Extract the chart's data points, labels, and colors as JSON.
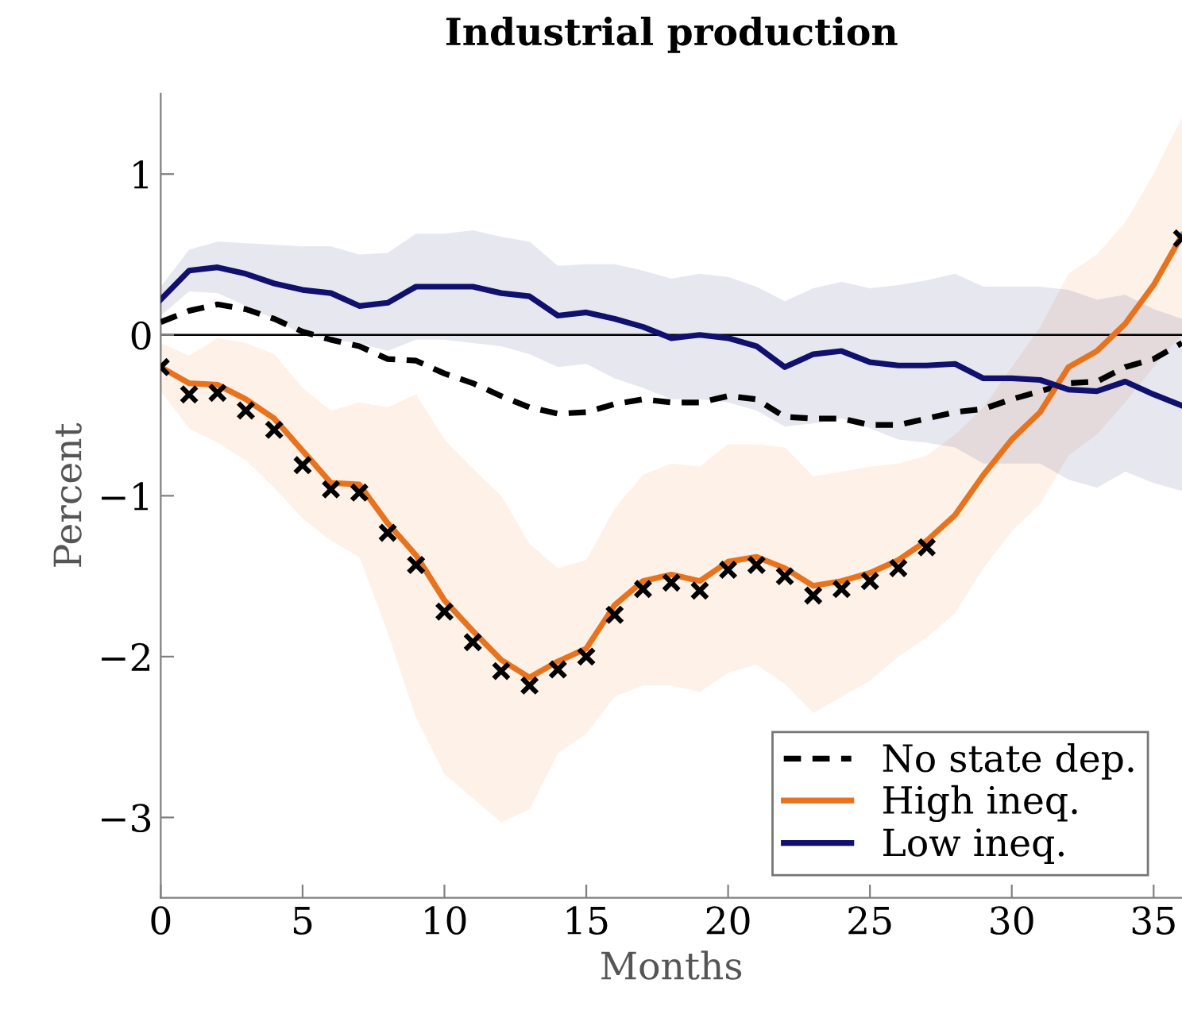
{
  "chart_data": {
    "type": "line",
    "title": "Industrial production",
    "xlabel": "Months",
    "ylabel": "Percent",
    "xlim": [
      0,
      36
    ],
    "ylim": [
      -3.5,
      1.5
    ],
    "xticks": [
      0,
      5,
      10,
      15,
      20,
      25,
      30,
      35
    ],
    "yticks": [
      {
        "value": -3,
        "label": "−3"
      },
      {
        "value": -2,
        "label": "−2"
      },
      {
        "value": -1,
        "label": "−1"
      },
      0,
      1
    ],
    "grid": false,
    "legend": "bottom right",
    "ref_lines": [
      {
        "axis": "y",
        "value": 0,
        "color": "#000000"
      }
    ],
    "x": [
      0,
      1,
      2,
      3,
      4,
      5,
      6,
      7,
      8,
      9,
      10,
      11,
      12,
      13,
      14,
      15,
      16,
      17,
      18,
      19,
      20,
      21,
      22,
      23,
      24,
      25,
      26,
      27,
      28,
      29,
      30,
      31,
      32,
      33,
      34,
      35,
      36
    ],
    "series": [
      {
        "name": "No state dep.",
        "color": "#000000",
        "line_style": "dashed",
        "values": [
          0.08,
          0.15,
          0.19,
          0.16,
          0.1,
          0.02,
          -0.03,
          -0.07,
          -0.15,
          -0.16,
          -0.24,
          -0.3,
          -0.38,
          -0.45,
          -0.49,
          -0.48,
          -0.43,
          -0.4,
          -0.42,
          -0.42,
          -0.38,
          -0.4,
          -0.51,
          -0.52,
          -0.52,
          -0.56,
          -0.56,
          -0.52,
          -0.48,
          -0.46,
          -0.4,
          -0.35,
          -0.3,
          -0.29,
          -0.2,
          -0.15,
          -0.05
        ]
      },
      {
        "name": "High ineq.",
        "color": "#e8731e",
        "line_style": "solid",
        "values": [
          -0.2,
          -0.3,
          -0.31,
          -0.4,
          -0.52,
          -0.72,
          -0.92,
          -0.93,
          -1.17,
          -1.37,
          -1.65,
          -1.84,
          -2.02,
          -2.13,
          -2.03,
          -1.95,
          -1.68,
          -1.53,
          -1.49,
          -1.53,
          -1.41,
          -1.38,
          -1.45,
          -1.56,
          -1.53,
          -1.48,
          -1.4,
          -1.28,
          -1.12,
          -0.87,
          -0.65,
          -0.48,
          -0.2,
          -0.1,
          0.07,
          0.31,
          0.62
        ],
        "upper": [
          -0.05,
          -0.13,
          -0.02,
          -0.05,
          -0.12,
          -0.33,
          -0.47,
          -0.42,
          -0.45,
          -0.37,
          -0.65,
          -0.83,
          -1.0,
          -1.3,
          -1.45,
          -1.4,
          -1.08,
          -0.87,
          -0.8,
          -0.82,
          -0.68,
          -0.68,
          -0.7,
          -0.88,
          -0.85,
          -0.82,
          -0.8,
          -0.75,
          -0.62,
          -0.45,
          -0.2,
          0.05,
          0.38,
          0.5,
          0.7,
          1.0,
          1.35
        ],
        "lower": [
          -0.35,
          -0.58,
          -0.67,
          -0.78,
          -0.95,
          -1.14,
          -1.28,
          -1.38,
          -1.85,
          -2.38,
          -2.73,
          -2.88,
          -3.03,
          -2.95,
          -2.6,
          -2.48,
          -2.25,
          -2.18,
          -2.18,
          -2.22,
          -2.1,
          -2.05,
          -2.17,
          -2.35,
          -2.25,
          -2.15,
          -2.0,
          -1.88,
          -1.73,
          -1.45,
          -1.22,
          -1.05,
          -0.75,
          -0.62,
          -0.42,
          -0.2,
          0.0
        ]
      },
      {
        "name": "Low ineq.",
        "color": "#10106e",
        "line_style": "solid",
        "values": [
          0.22,
          0.4,
          0.42,
          0.38,
          0.32,
          0.28,
          0.26,
          0.18,
          0.2,
          0.3,
          0.3,
          0.3,
          0.26,
          0.24,
          0.12,
          0.14,
          0.1,
          0.05,
          -0.02,
          0.0,
          -0.02,
          -0.07,
          -0.2,
          -0.12,
          -0.1,
          -0.17,
          -0.19,
          -0.19,
          -0.18,
          -0.27,
          -0.27,
          -0.28,
          -0.34,
          -0.35,
          -0.29,
          -0.37,
          -0.44
        ],
        "upper": [
          0.3,
          0.53,
          0.58,
          0.57,
          0.56,
          0.55,
          0.55,
          0.5,
          0.51,
          0.63,
          0.63,
          0.65,
          0.61,
          0.58,
          0.43,
          0.44,
          0.44,
          0.4,
          0.35,
          0.38,
          0.36,
          0.3,
          0.21,
          0.29,
          0.33,
          0.29,
          0.31,
          0.34,
          0.38,
          0.3,
          0.3,
          0.3,
          0.28,
          0.22,
          0.25,
          0.16,
          0.1
        ],
        "lower": [
          0.12,
          0.27,
          0.26,
          0.18,
          0.1,
          0.0,
          -0.03,
          -0.05,
          -0.1,
          -0.03,
          -0.03,
          -0.05,
          -0.07,
          -0.12,
          -0.2,
          -0.18,
          -0.27,
          -0.33,
          -0.4,
          -0.4,
          -0.42,
          -0.47,
          -0.57,
          -0.55,
          -0.52,
          -0.58,
          -0.65,
          -0.67,
          -0.7,
          -0.8,
          -0.8,
          -0.8,
          -0.9,
          -0.95,
          -0.85,
          -0.92,
          -0.97
        ]
      },
      {
        "type": "scatter",
        "color": "#000000",
        "marker": "cross",
        "x": [
          0,
          1,
          2,
          3,
          4,
          5,
          6,
          7,
          8,
          9,
          10,
          11,
          12,
          13,
          14,
          15,
          16,
          17,
          18,
          19,
          20,
          21,
          22,
          23,
          24,
          25,
          26,
          27,
          36
        ],
        "values": [
          -0.2,
          -0.37,
          -0.36,
          -0.47,
          -0.59,
          -0.81,
          -0.96,
          -0.98,
          -1.23,
          -1.43,
          -1.72,
          -1.91,
          -2.09,
          -2.18,
          -2.08,
          -2.0,
          -1.74,
          -1.58,
          -1.54,
          -1.59,
          -1.46,
          -1.43,
          -1.5,
          -1.62,
          -1.58,
          -1.53,
          -1.45,
          -1.32,
          0.6
        ]
      }
    ]
  }
}
